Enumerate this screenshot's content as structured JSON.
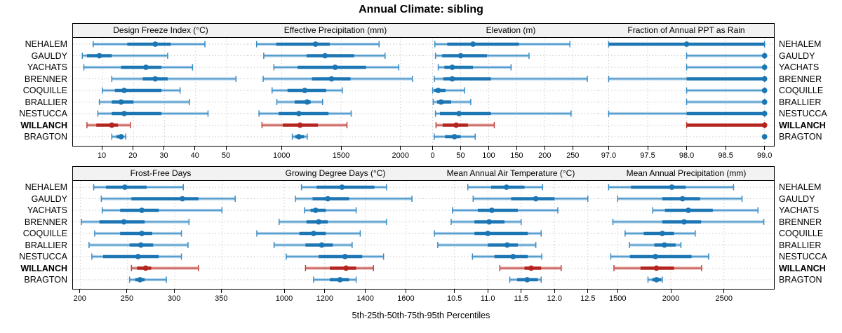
{
  "title": "Annual Climate: sibling",
  "caption": "5th-25th-50th-75th-95th Percentiles",
  "colors": {
    "blue_dark": "#1d76b4",
    "blue_mid": "#3a8cc4",
    "blue_band": "#b3d3ea",
    "red_dark": "#b5251f",
    "red_mid": "#c0443f",
    "red_band": "#e6aeaa",
    "gridline": "#c6c6c6",
    "strip_bg": "#f2f2f2",
    "border": "#000000"
  },
  "chart_data": {
    "type": "dot-interval-trellis",
    "percentiles": [
      5,
      25,
      50,
      75,
      95
    ],
    "sites": [
      "NEHALEM",
      "GAULDY",
      "YACHATS",
      "BRENNER",
      "COQUILLE",
      "BRALLIER",
      "NESTUCCA",
      "WILLANCH",
      "BRAGTON"
    ],
    "highlight_site": "WILLANCH",
    "legend_position": "none",
    "grid": "dotted",
    "panels": [
      {
        "label": "Design Freeze Index (°C)",
        "xlim": [
          0.5,
          57
        ],
        "ticks": [
          10,
          20,
          30,
          40,
          50
        ],
        "tick_labels": [
          "10",
          "20",
          "30",
          "40",
          "50"
        ],
        "values": [
          [
            7,
            18,
            27,
            32,
            43
          ],
          [
            3.5,
            5,
            9,
            13,
            31
          ],
          [
            4,
            16,
            24,
            29,
            39
          ],
          [
            13,
            23,
            27,
            31,
            53
          ],
          [
            10,
            14,
            17,
            29,
            35
          ],
          [
            9,
            13,
            16,
            20,
            38
          ],
          [
            8.5,
            13,
            17,
            29,
            44
          ],
          [
            5,
            8,
            13,
            15,
            19
          ],
          [
            13,
            14.5,
            16,
            16.5,
            17.5
          ]
        ]
      },
      {
        "label": "Effective Precipitation (mm)",
        "xlim": [
          715,
          2190
        ],
        "ticks": [
          1000,
          1500,
          2000
        ],
        "tick_labels": [
          "1000",
          "1500",
          "2000"
        ],
        "values": [
          [
            790,
            955,
            1285,
            1405,
            1820
          ],
          [
            850,
            1210,
            1365,
            1610,
            1870
          ],
          [
            935,
            1135,
            1450,
            1710,
            1985
          ],
          [
            845,
            1255,
            1420,
            1580,
            2100
          ],
          [
            920,
            1050,
            1195,
            1375,
            1510
          ],
          [
            960,
            1110,
            1215,
            1245,
            1345
          ],
          [
            810,
            975,
            1145,
            1395,
            1585
          ],
          [
            835,
            1010,
            1155,
            1305,
            1550
          ],
          [
            1090,
            1115,
            1145,
            1190,
            1215
          ]
        ]
      },
      {
        "label": "Elevation (m)",
        "xlim": [
          -17,
          296
        ],
        "ticks": [
          0,
          50,
          100,
          150,
          200,
          250
        ],
        "tick_labels": [
          "0",
          "50",
          "100",
          "150",
          "200",
          "250"
        ],
        "values": [
          [
            4,
            26,
            72,
            154,
            245
          ],
          [
            5,
            17,
            50,
            97,
            172
          ],
          [
            10,
            21,
            35,
            72,
            140
          ],
          [
            3,
            19,
            35,
            104,
            276
          ],
          [
            0,
            3,
            10,
            23,
            57
          ],
          [
            1,
            8,
            15,
            33,
            68
          ],
          [
            5,
            13,
            47,
            104,
            247
          ],
          [
            6,
            18,
            42,
            63,
            110
          ],
          [
            3,
            22,
            39,
            50,
            76
          ]
        ]
      },
      {
        "label": "Fraction of Annual PPT as Rain",
        "xlim": [
          96.87,
          99.12
        ],
        "ticks": [
          97.0,
          97.5,
          98.0,
          98.5,
          99.0
        ],
        "tick_labels": [
          "97.0",
          "97.5",
          "98.0",
          "98.5",
          "99.0"
        ],
        "values": [
          [
            97,
            97,
            98,
            99,
            99
          ],
          [
            98,
            99,
            99,
            99,
            99
          ],
          [
            98,
            99,
            99,
            99,
            99
          ],
          [
            97,
            98,
            99,
            99,
            99
          ],
          [
            98,
            99,
            99,
            99,
            99
          ],
          [
            98,
            99,
            99,
            99,
            99
          ],
          [
            97,
            98,
            99,
            99,
            99
          ],
          [
            98,
            98,
            99,
            99,
            99
          ],
          [
            99,
            99,
            99,
            99,
            99
          ]
        ]
      },
      {
        "label": "Frost-Free Days",
        "xlim": [
          192,
          378
        ],
        "ticks": [
          200,
          250,
          300,
          350
        ],
        "tick_labels": [
          "200",
          "250",
          "300",
          "350"
        ],
        "values": [
          [
            214,
            227,
            247,
            270,
            309
          ],
          [
            222,
            254,
            308,
            325,
            364
          ],
          [
            223,
            242,
            265,
            283,
            350
          ],
          [
            201,
            220,
            246,
            268,
            315
          ],
          [
            215,
            242,
            265,
            276,
            307
          ],
          [
            209,
            252,
            264,
            277,
            314
          ],
          [
            212,
            224,
            261,
            283,
            307
          ],
          [
            254,
            260,
            269,
            275,
            325
          ],
          [
            252,
            258,
            263,
            268,
            291
          ]
        ]
      },
      {
        "label": "Growing Degree Days (°C)",
        "xlim": [
          820,
          1685
        ],
        "ticks": [
          1000,
          1200,
          1400,
          1600
        ],
        "tick_labels": [
          "1000",
          "1200",
          "1400",
          "1600"
        ],
        "values": [
          [
            1085,
            1160,
            1285,
            1445,
            1505
          ],
          [
            1055,
            1140,
            1215,
            1320,
            1630
          ],
          [
            1100,
            1130,
            1155,
            1205,
            1355
          ],
          [
            975,
            1110,
            1170,
            1215,
            1505
          ],
          [
            865,
            1075,
            1145,
            1205,
            1375
          ],
          [
            950,
            1105,
            1185,
            1240,
            1335
          ],
          [
            1010,
            1170,
            1300,
            1385,
            1490
          ],
          [
            1105,
            1225,
            1305,
            1355,
            1440
          ],
          [
            1145,
            1225,
            1275,
            1320,
            1355
          ]
        ]
      },
      {
        "label": "Mean Annual Air Temperature (°C)",
        "xlim": [
          10.03,
          12.66
        ],
        "ticks": [
          10.5,
          11.0,
          11.5,
          12.0,
          12.5
        ],
        "tick_labels": [
          "10.5",
          "11.0",
          "11.5",
          "12.0",
          "12.5"
        ],
        "values": [
          [
            10.7,
            11.05,
            11.28,
            11.55,
            11.82
          ],
          [
            10.78,
            11.35,
            11.72,
            12.0,
            12.5
          ],
          [
            10.47,
            10.85,
            11.06,
            11.45,
            12.05
          ],
          [
            10.45,
            10.8,
            11.02,
            11.25,
            11.5
          ],
          [
            10.2,
            10.8,
            11.0,
            11.6,
            11.8
          ],
          [
            10.25,
            11.0,
            11.29,
            11.45,
            11.72
          ],
          [
            10.77,
            11.1,
            11.38,
            11.6,
            11.81
          ],
          [
            11.18,
            11.55,
            11.65,
            11.8,
            12.1
          ],
          [
            11.33,
            11.44,
            11.59,
            11.75,
            11.8
          ]
        ]
      },
      {
        "label": "Mean Annual Precipitation (mm)",
        "xlim": [
          1320,
          2970
        ],
        "ticks": [
          1500,
          2000,
          2500
        ],
        "tick_labels": [
          "1500",
          "2000",
          "2500"
        ],
        "values": [
          [
            1415,
            1625,
            2010,
            2140,
            2590
          ],
          [
            1500,
            1920,
            2110,
            2275,
            2670
          ],
          [
            1830,
            1945,
            2165,
            2395,
            2820
          ],
          [
            1455,
            1920,
            2125,
            2285,
            2875
          ],
          [
            1570,
            1745,
            1920,
            2030,
            2230
          ],
          [
            1610,
            1845,
            1940,
            2045,
            2095
          ],
          [
            1435,
            1615,
            1855,
            2195,
            2355
          ],
          [
            1465,
            1715,
            1865,
            2030,
            2290
          ],
          [
            1785,
            1825,
            1865,
            1910,
            1920
          ]
        ]
      }
    ]
  }
}
